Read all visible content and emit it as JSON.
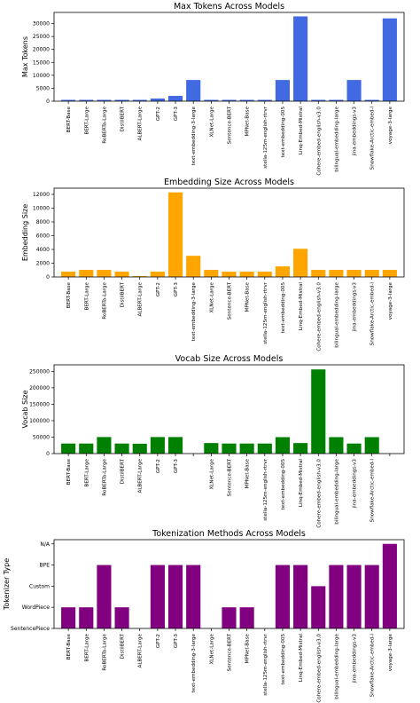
{
  "chart_data": [
    {
      "type": "bar",
      "title": "Max Tokens Across Models",
      "xlabel": "",
      "ylabel": "Max Tokens",
      "color": "#4169e1",
      "ylim": [
        0,
        34300
      ],
      "yticks": [
        0,
        5000,
        10000,
        15000,
        20000,
        25000,
        30000
      ],
      "ytick_labels": [
        "0",
        "5000",
        "10000",
        "15000",
        "20000",
        "25000",
        "30000"
      ],
      "categories": [
        "BERT-Base",
        "BERT-Large",
        "RoBERTa-Large",
        "DistilBERT",
        "ALBERT-Large",
        "GPT-2",
        "GPT-3",
        "text-embedding-3-large",
        "XLNet-Large",
        "Sentence-BERT",
        "MPNet-Base",
        "stella-125m-english-rtrvr",
        "text-embedding-005",
        "Linq-Embed-Mistral",
        "Cohere-embed-english-v3.0",
        "bilingual-embedding-large",
        "jina-embeddings-v3",
        "Snowflake-Arctic-embed-l",
        "voyage-3-large"
      ],
      "values": [
        512,
        512,
        512,
        512,
        512,
        1024,
        2048,
        8191,
        512,
        512,
        512,
        512,
        8192,
        32768,
        512,
        512,
        8192,
        512,
        32000
      ]
    },
    {
      "type": "bar",
      "title": "Embedding Size Across Models",
      "xlabel": "",
      "ylabel": "Embedding Size",
      "color": "#ffa500",
      "ylim": [
        0,
        12900
      ],
      "yticks": [
        0,
        2000,
        4000,
        6000,
        8000,
        10000,
        12000
      ],
      "ytick_labels": [
        "0",
        "2000",
        "4000",
        "6000",
        "8000",
        "10000",
        "12000"
      ],
      "categories": [
        "BERT-Base",
        "BERT-Large",
        "RoBERTa-Large",
        "DistilBERT",
        "ALBERT-Large",
        "GPT-2",
        "GPT-3",
        "text-embedding-3-large",
        "XLNet-Large",
        "Sentence-BERT",
        "MPNet-Base",
        "stella-125m-english-rtrvr",
        "text-embedding-005",
        "Linq-Embed-Mistral",
        "Cohere-embed-english-v3.0",
        "bilingual-embedding-large",
        "jina-embeddings-v3",
        "Snowflake-Arctic-embed-l",
        "voyage-3-large"
      ],
      "values": [
        768,
        1024,
        1024,
        768,
        128,
        768,
        12288,
        3072,
        1024,
        768,
        768,
        768,
        1536,
        4096,
        1024,
        1024,
        1024,
        1024,
        1024
      ]
    },
    {
      "type": "bar",
      "title": "Vocab Size Across Models",
      "xlabel": "",
      "ylabel": "Vocab Size",
      "color": "#008000",
      "ylim": [
        0,
        270000
      ],
      "yticks": [
        0,
        50000,
        100000,
        150000,
        200000,
        250000
      ],
      "ytick_labels": [
        "0",
        "50000",
        "100000",
        "150000",
        "200000",
        "250000"
      ],
      "categories": [
        "BERT-Base",
        "BERT-Large",
        "RoBERTa-Large",
        "DistilBERT",
        "ALBERT-Large",
        "GPT-2",
        "GPT-3",
        "",
        "XLNet-Large",
        "Sentence-BERT",
        "MPNet-Base",
        "stella-125m-english-rtrvr",
        "text-embedding-005",
        "Linq-Embed-Mistral",
        "Cohere-embed-english-v3.0",
        "bilingual-embedding-large",
        "jina-embeddings-v3",
        "Snowflake-Arctic-embed-l",
        ""
      ],
      "values": [
        30522,
        30522,
        50265,
        30522,
        30000,
        50257,
        50257,
        0,
        32000,
        30522,
        30527,
        30522,
        50000,
        32000,
        256000,
        50000,
        30528,
        50000,
        0
      ]
    },
    {
      "type": "bar",
      "title": "Tokenization Methods Across Models",
      "xlabel": "",
      "ylabel": "Tokenizer Type",
      "color": "#800080",
      "ylim": [
        0,
        4.2
      ],
      "yticks": [
        0,
        1,
        2,
        3,
        4
      ],
      "ytick_labels": [
        "SentencePiece",
        "WordPiece",
        "Custom",
        "BPE",
        "N/A"
      ],
      "categories": [
        "BERT-Base",
        "BERT-Large",
        "RoBERTa-Large",
        "DistilBERT",
        "ALBERT-Large",
        "GPT-2",
        "GPT-3",
        "text-embedding-3-large",
        "XLNet-Large",
        "Sentence-BERT",
        "MPNet-Base",
        "stella-125m-english-rtrvr",
        "text-embedding-005",
        "Linq-Embed-Mistral",
        "Cohere-embed-english-v3.0",
        "bilingual-embedding-large",
        "jina-embeddings-v3",
        "Snowflake-Arctic-embed-l",
        "voyage-3-large"
      ],
      "values": [
        1,
        1,
        3,
        1,
        0,
        3,
        3,
        3,
        0,
        1,
        1,
        0,
        3,
        3,
        2,
        3,
        3,
        3,
        4
      ]
    }
  ]
}
